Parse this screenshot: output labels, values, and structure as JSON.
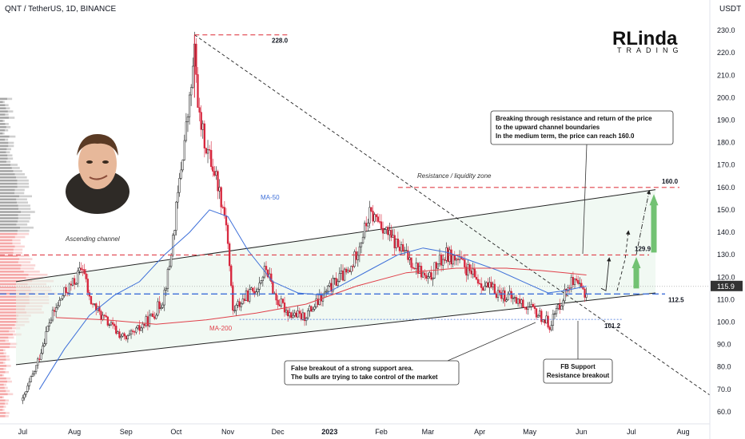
{
  "header": {
    "symbol": "QNT / TetherUS, 1D, BINANCE"
  },
  "logo": {
    "line1": "RLinda",
    "line2": "TRADING"
  },
  "chart_data": {
    "type": "candlestick",
    "currency": "USDT",
    "ylim": [
      55,
      235
    ],
    "y_ticks": [
      60,
      70,
      80,
      90,
      100,
      110,
      120,
      130,
      140,
      150,
      160,
      170,
      180,
      190,
      200,
      210,
      220,
      230
    ],
    "y_tick_labels": [
      "60.0",
      "70.0",
      "80.0",
      "90.0",
      "100.0",
      "110.0",
      "120.0",
      "130.0",
      "140.0",
      "150.0",
      "160.0",
      "170.0",
      "180.0",
      "190.0",
      "200.0",
      "210.0",
      "220.0",
      "230.0"
    ],
    "x_ticks": [
      {
        "label": "Jul",
        "d": 0
      },
      {
        "label": "Aug",
        "d": 31
      },
      {
        "label": "Sep",
        "d": 62
      },
      {
        "label": "Oct",
        "d": 92
      },
      {
        "label": "Nov",
        "d": 123
      },
      {
        "label": "Dec",
        "d": 153
      },
      {
        "label": "2023",
        "d": 184
      },
      {
        "label": "Feb",
        "d": 215
      },
      {
        "label": "Mar",
        "d": 243
      },
      {
        "label": "Apr",
        "d": 274
      },
      {
        "label": "May",
        "d": 304
      },
      {
        "label": "Jun",
        "d": 335
      },
      {
        "label": "Jul",
        "d": 365
      },
      {
        "label": "Aug",
        "d": 396
      }
    ],
    "x_range_days": [
      -5,
      412
    ],
    "current_price": "115.9",
    "price_path": [
      [
        0,
        65
      ],
      [
        8,
        80
      ],
      [
        16,
        100
      ],
      [
        24,
        112
      ],
      [
        31,
        118
      ],
      [
        36,
        125
      ],
      [
        40,
        110
      ],
      [
        48,
        102
      ],
      [
        56,
        96
      ],
      [
        62,
        92
      ],
      [
        70,
        97
      ],
      [
        78,
        103
      ],
      [
        84,
        110
      ],
      [
        88,
        125
      ],
      [
        92,
        150
      ],
      [
        96,
        175
      ],
      [
        100,
        198
      ],
      [
        103,
        220
      ],
      [
        106,
        190
      ],
      [
        110,
        178
      ],
      [
        116,
        165
      ],
      [
        122,
        145
      ],
      [
        126,
        105
      ],
      [
        132,
        110
      ],
      [
        140,
        115
      ],
      [
        146,
        124
      ],
      [
        152,
        110
      ],
      [
        160,
        104
      ],
      [
        168,
        102
      ],
      [
        176,
        108
      ],
      [
        184,
        115
      ],
      [
        190,
        120
      ],
      [
        196,
        122
      ],
      [
        202,
        135
      ],
      [
        208,
        148
      ],
      [
        214,
        145
      ],
      [
        220,
        138
      ],
      [
        226,
        133
      ],
      [
        232,
        128
      ],
      [
        238,
        123
      ],
      [
        243,
        118
      ],
      [
        248,
        125
      ],
      [
        254,
        130
      ],
      [
        262,
        127
      ],
      [
        268,
        122
      ],
      [
        274,
        118
      ],
      [
        280,
        115
      ],
      [
        286,
        113
      ],
      [
        292,
        111
      ],
      [
        298,
        109
      ],
      [
        304,
        106
      ],
      [
        310,
        103
      ],
      [
        316,
        99
      ],
      [
        322,
        108
      ],
      [
        328,
        118
      ],
      [
        334,
        115
      ],
      [
        338,
        113
      ]
    ],
    "series": [
      {
        "name": "MA-50",
        "color": "#3d6fd9",
        "points": [
          [
            10,
            70
          ],
          [
            25,
            88
          ],
          [
            40,
            103
          ],
          [
            55,
            112
          ],
          [
            70,
            118
          ],
          [
            85,
            130
          ],
          [
            100,
            140
          ],
          [
            112,
            150
          ],
          [
            123,
            147
          ],
          [
            135,
            132
          ],
          [
            150,
            118
          ],
          [
            165,
            113
          ],
          [
            180,
            112
          ],
          [
            195,
            118
          ],
          [
            210,
            124
          ],
          [
            225,
            130
          ],
          [
            240,
            133
          ],
          [
            255,
            131
          ],
          [
            270,
            127
          ],
          [
            285,
            123
          ],
          [
            300,
            118
          ],
          [
            315,
            113
          ],
          [
            325,
            114
          ],
          [
            338,
            116
          ]
        ]
      },
      {
        "name": "MA-200",
        "color": "#e0404a",
        "points": [
          [
            20,
            102
          ],
          [
            50,
            101
          ],
          [
            80,
            99
          ],
          [
            110,
            101
          ],
          [
            140,
            104
          ],
          [
            170,
            108
          ],
          [
            200,
            116
          ],
          [
            230,
            122
          ],
          [
            260,
            124
          ],
          [
            290,
            124
          ],
          [
            310,
            123
          ],
          [
            325,
            122
          ],
          [
            338,
            121
          ]
        ]
      }
    ],
    "levels": [
      {
        "value": 228.0,
        "label": "228.0",
        "color": "#e0404a"
      },
      {
        "value": 160.0,
        "label": "160.0",
        "color": "#e0404a"
      },
      {
        "value": 129.9,
        "label": "129.9",
        "color": "#e0404a"
      },
      {
        "value": 112.5,
        "label": "112.5",
        "color": "#3d6fd9"
      },
      {
        "value": 101.2,
        "label": "101.2",
        "color": "#3d6fd9"
      }
    ],
    "annotations": [
      {
        "id": "ascending",
        "text": "Ascending channel"
      },
      {
        "id": "resistance_zone",
        "text": "Resistance / liquidity zone"
      },
      {
        "id": "ma50",
        "text": "MA-50"
      },
      {
        "id": "ma200",
        "text": "MA-200"
      }
    ],
    "callouts": {
      "top": [
        "Breaking through resistance and return of the price",
        "to the upward channel boundaries",
        "In the medium term, the price can reach 160.0"
      ],
      "bottom": [
        "False breakout of a strong support area.",
        "The bulls are trying to take control of the market"
      ],
      "fb": [
        "FB Support",
        "Resistance breakout"
      ]
    }
  },
  "colors": {
    "bull": "#26a69a",
    "bear": "#ef5350",
    "candle_up": "#1a1a1a",
    "candle_down": "#d7263d",
    "arrow": "#5cb85c"
  }
}
